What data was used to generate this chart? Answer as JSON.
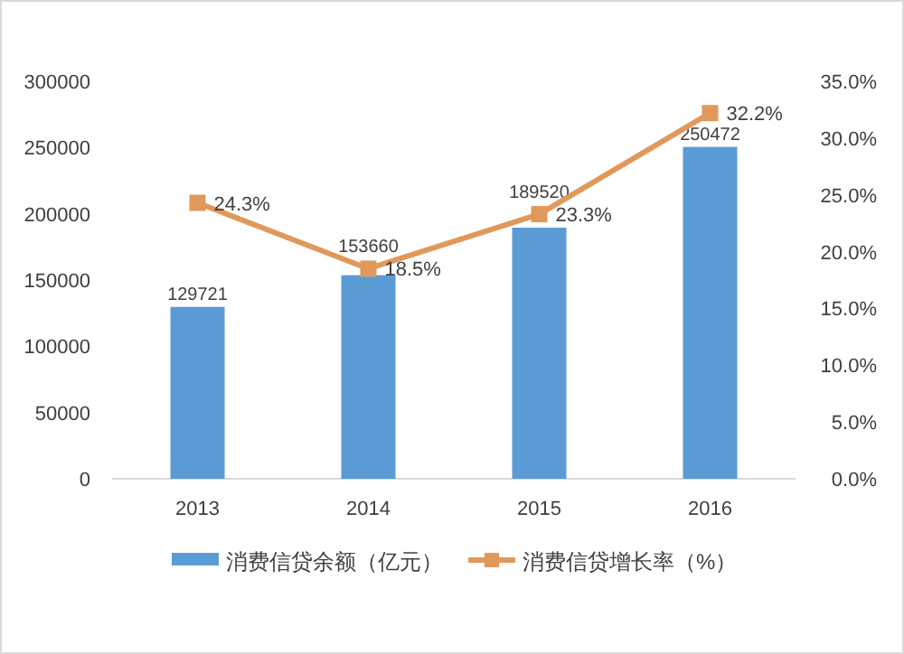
{
  "chart_data": {
    "type": "bar",
    "categories": [
      "2013",
      "2014",
      "2015",
      "2016"
    ],
    "series": [
      {
        "name": "消费信贷余额（亿元）",
        "color": "#5b9bd5",
        "values": [
          129721,
          153660,
          189520,
          250472
        ],
        "value_labels": [
          "129721",
          "153660",
          "189520",
          "250472"
        ]
      },
      {
        "name": "消费信贷增长率（%）",
        "type": "line",
        "axis": "y2",
        "color": "#e0995a",
        "marker": "square",
        "values": [
          24.3,
          18.5,
          23.3,
          32.2
        ],
        "value_labels": [
          "24.3%",
          "18.5%",
          "23.3%",
          "32.2%"
        ]
      }
    ],
    "ylim": [
      0,
      300000
    ],
    "yticks": [
      0,
      50000,
      100000,
      150000,
      200000,
      250000,
      300000
    ],
    "y2lim": [
      0,
      35
    ],
    "y2ticks": [
      {
        "value": 0,
        "label": "0.0%"
      },
      {
        "value": 5,
        "label": "5.0%"
      },
      {
        "value": 10,
        "label": "10.0%"
      },
      {
        "value": 15,
        "label": "15.0%"
      },
      {
        "value": 20,
        "label": "20.0%"
      },
      {
        "value": 25,
        "label": "25.0%"
      },
      {
        "value": 30,
        "label": "30.0%"
      },
      {
        "value": 35,
        "label": "35.0%"
      }
    ],
    "grid": false,
    "legend": "bottom"
  }
}
